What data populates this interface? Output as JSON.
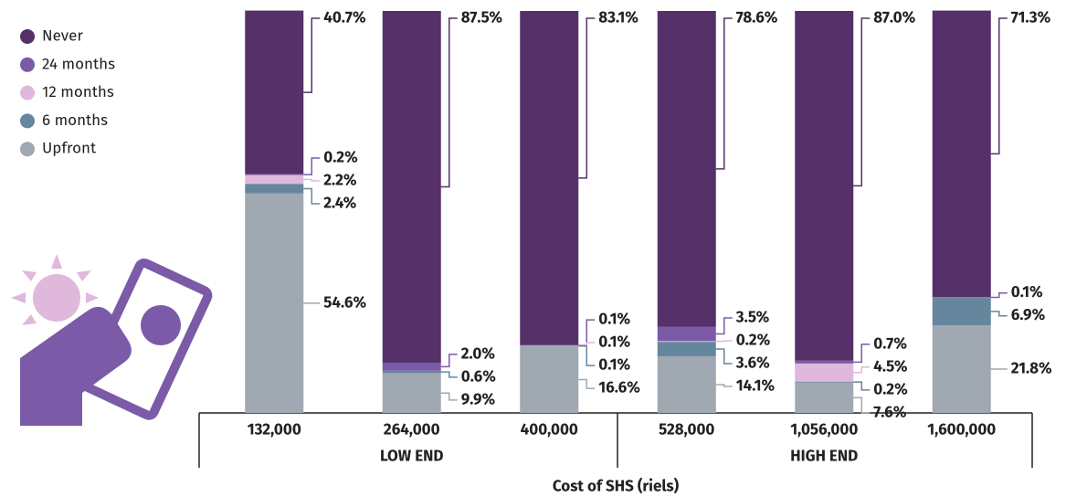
{
  "chart_data": {
    "type": "stacked_bar",
    "x_label": "Cost of SHS (riels)",
    "categories": [
      "132,000",
      "264,000",
      "400,000",
      "528,000",
      "1,056,000",
      "1,600,000"
    ],
    "groups": [
      {
        "label": "LOW END",
        "span": [
          0,
          2
        ]
      },
      {
        "label": "HIGH END",
        "span": [
          3,
          5
        ]
      }
    ],
    "ylim": [
      0,
      100
    ],
    "legend": "top-left",
    "series": [
      {
        "name": "Never",
        "color": "#553069",
        "values": [
          40.7,
          87.5,
          83.1,
          78.6,
          87.0,
          71.3
        ],
        "value_labels": [
          "40.7%",
          "87.5%",
          "83.1%",
          "78.6%",
          "87.0%",
          "71.3%"
        ]
      },
      {
        "name": "24 months",
        "color": "#7b5ba8",
        "values": [
          0.2,
          2.0,
          0.1,
          3.5,
          0.7,
          0.1
        ],
        "value_labels": [
          "0.2%",
          "2.0%",
          "0.1%",
          "3.5%",
          "0.7%",
          "0.1%"
        ]
      },
      {
        "name": "12 months",
        "color": "#e0b8dc",
        "values": [
          2.2,
          null,
          0.1,
          0.2,
          4.5,
          null
        ],
        "value_labels": [
          "2.2%",
          null,
          "0.1%",
          "0.2%",
          "4.5%",
          null
        ]
      },
      {
        "name": "6 months",
        "color": "#66869e",
        "values": [
          2.4,
          0.6,
          0.1,
          3.6,
          0.2,
          6.9
        ],
        "value_labels": [
          "2.4%",
          "0.6%",
          "0.1%",
          "3.6%",
          "0.2%",
          "6.9%"
        ]
      },
      {
        "name": "Upfront",
        "color": "#a0a8b2",
        "values": [
          54.6,
          9.9,
          16.6,
          14.1,
          7.6,
          21.8
        ],
        "value_labels": [
          "54.6%",
          "9.9%",
          "16.6%",
          "14.1%",
          "7.6%",
          "21.8%"
        ]
      }
    ]
  }
}
